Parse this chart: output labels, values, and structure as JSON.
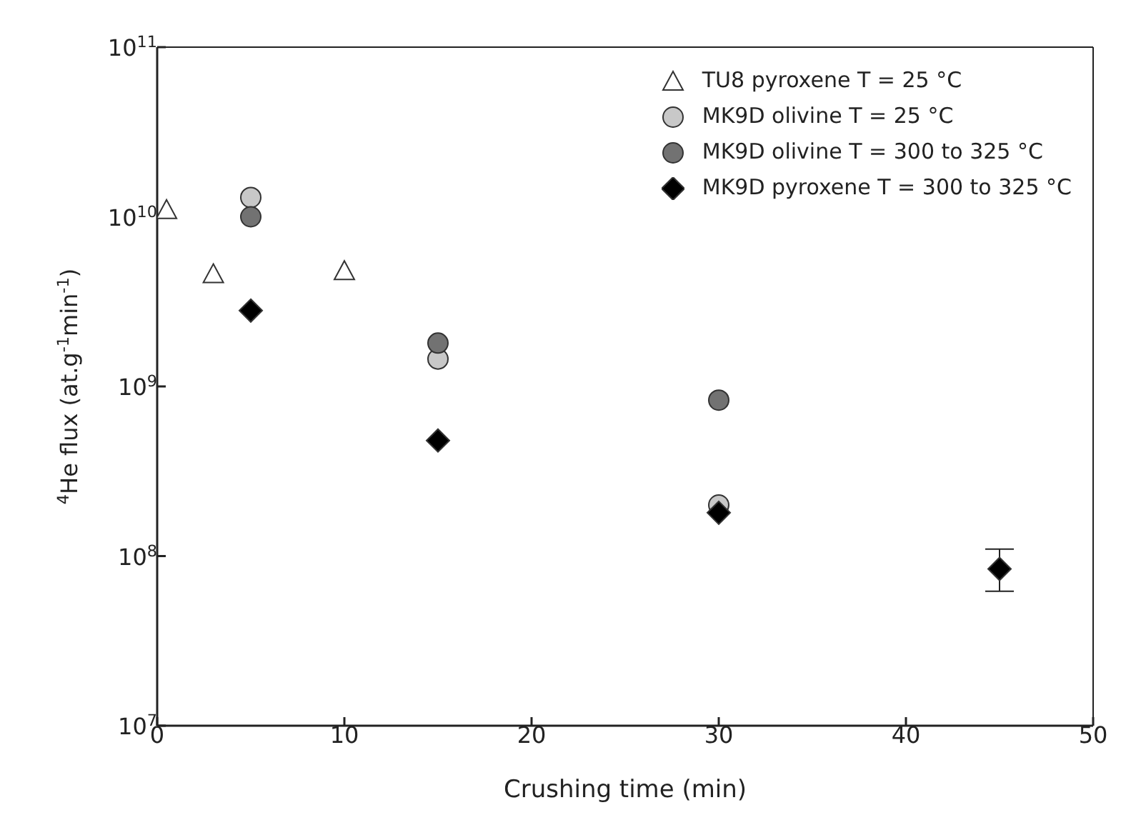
{
  "chart_data": {
    "type": "scatter",
    "xlabel": "Crushing time (min)",
    "ylabel": "$^{4}$He flux (at.g$^{-1}$min$^{-1}$)",
    "log": "y",
    "grid": false,
    "legend": "top right",
    "xlim": [
      0,
      50
    ],
    "xticks": [
      0,
      10,
      20,
      30,
      40,
      50
    ],
    "ylim": [
      10000000,
      100000000000
    ],
    "yticks": [
      {
        "value": 10000000,
        "label": "10$^{7}$"
      },
      {
        "value": 100000000,
        "label": "10$^{8}$"
      },
      {
        "value": 1000000000,
        "label": "10$^{9}$"
      },
      {
        "value": 10000000000,
        "label": "10$^{10}$"
      },
      {
        "value": 100000000000,
        "label": "10$^{11}$"
      }
    ],
    "series": [
      {
        "name": "TU8 pyroxene T = 25 °C",
        "color": "#ffffff",
        "marker": "triangle",
        "x": [
          0.5,
          3,
          10
        ],
        "values": [
          11000000000,
          4600000000,
          4800000000
        ]
      },
      {
        "name": "MK9D olivine T = 25 °C",
        "color": "#c8c8c8",
        "marker": "circle",
        "x": [
          5,
          15,
          30
        ],
        "values": [
          13000000000,
          1450000000,
          200000000
        ]
      },
      {
        "name": "MK9D olivine T = 300 to 325 °C",
        "color": "#727272",
        "marker": "circle",
        "x": [
          5,
          15,
          30
        ],
        "values": [
          10000000000,
          1800000000,
          830000000
        ]
      },
      {
        "name": "MK9D pyroxene T = 300 to 325 °C",
        "color": "#000000",
        "marker": "diamond",
        "x": [
          5,
          15,
          30,
          45
        ],
        "values": [
          2800000000,
          480000000,
          180000000,
          84000000
        ],
        "errors": [
          null,
          null,
          null,
          [
            62000000,
            110000000
          ]
        ]
      }
    ]
  }
}
